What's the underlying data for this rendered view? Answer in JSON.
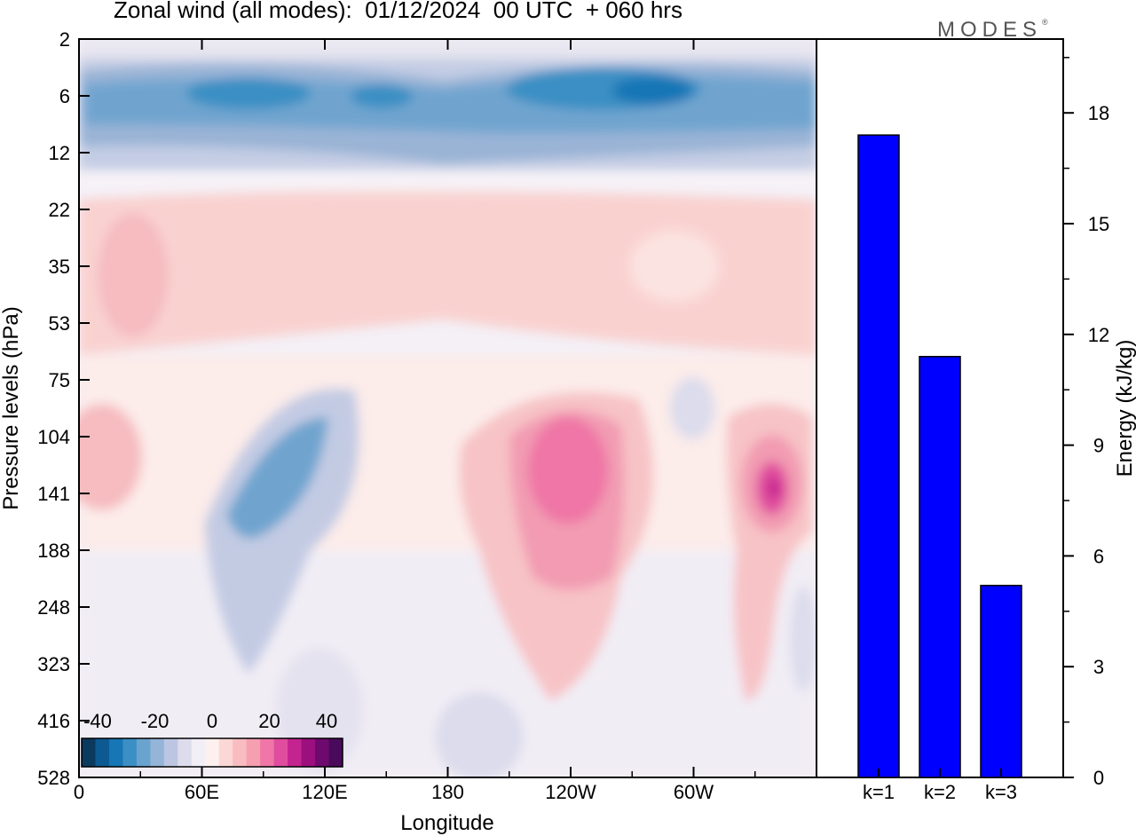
{
  "title": "Zonal wind (all modes):  01/12/2024  00 UTC  + 060 hrs",
  "logo": "MODES",
  "logo_mark": "®",
  "chart_data": [
    {
      "type": "heatmap",
      "title": "Zonal wind (all modes):  01/12/2024  00 UTC  + 060 hrs",
      "xlabel": "Longitude",
      "ylabel": "Pressure levels (hPa)",
      "x_ticks": [
        "0",
        "60E",
        "120E",
        "180",
        "120W",
        "60W"
      ],
      "y_ticks": [
        "2",
        "6",
        "12",
        "22",
        "35",
        "53",
        "75",
        "104",
        "141",
        "188",
        "248",
        "323",
        "416",
        "528"
      ],
      "y_axis": "log-pressure, inverted (2 hPa at top, 528 hPa at bottom)",
      "colorbar": {
        "labels": [
          "-40",
          "-20",
          "0",
          "20",
          "40"
        ],
        "colors": [
          "#0b3a5e",
          "#0d5a92",
          "#1676b6",
          "#3b8fc4",
          "#6ba3cf",
          "#94b5d8",
          "#bcc6e2",
          "#dcdcec",
          "#f2eef6",
          "#fdf0ee",
          "#fbd8d6",
          "#f9bcc0",
          "#f59fb0",
          "#ef76a6",
          "#e04d9e",
          "#c4248f",
          "#9c0f7f",
          "#6e0a6f",
          "#4a0a5c"
        ]
      },
      "features": [
        {
          "name": "upper easterly band",
          "level_hPa": "4-12",
          "sign": "negative",
          "min_approx": -25
        },
        {
          "name": "stratospheric westerly layer",
          "level_hPa": "22-60",
          "sign": "positive",
          "max_approx": 10
        },
        {
          "name": "jet near 120W",
          "level_hPa": "90-250",
          "sign": "positive",
          "max_approx": 30
        },
        {
          "name": "jet near 30W",
          "level_hPa": "100-160",
          "sign": "positive",
          "max_approx": 35
        },
        {
          "name": "jet near 0",
          "level_hPa": "100-160",
          "sign": "positive",
          "max_approx": 10
        },
        {
          "name": "easterly core near 90E",
          "level_hPa": "90-200",
          "sign": "negative",
          "min_approx": -20
        }
      ]
    },
    {
      "type": "bar",
      "categories": [
        "k=1",
        "k=2",
        "k=3"
      ],
      "values": [
        17.4,
        11.4,
        5.2
      ],
      "ylabel": "Energy (kJ/kg)",
      "ylim": [
        0,
        20
      ],
      "y_ticks": [
        "0",
        "3",
        "6",
        "9",
        "12",
        "15",
        "18"
      ],
      "bar_color": "#0000ff"
    }
  ]
}
